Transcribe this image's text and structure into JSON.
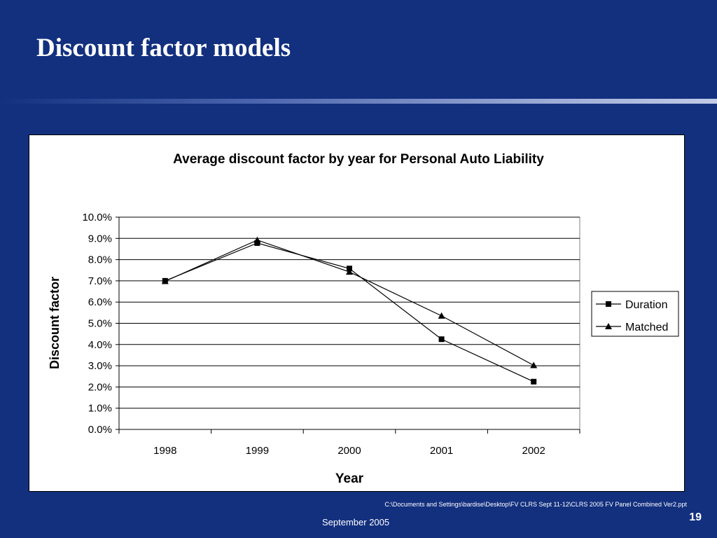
{
  "slide": {
    "title": "Discount factor models",
    "footer_path": "C:\\Documents and Settings\\bardise\\Desktop\\FV CLRS Sept 11-12\\CLRS 2005 FV Panel Combined Ver2.ppt",
    "footer_date": "September 2005",
    "page_number": "19"
  },
  "chart_data": {
    "type": "line",
    "title": "Average discount factor by year for Personal Auto Liability",
    "xlabel": "Year",
    "ylabel": "Discount factor",
    "categories": [
      "1998",
      "1999",
      "2000",
      "2001",
      "2002"
    ],
    "ylim": [
      0,
      0.1
    ],
    "yticks": [
      "0.0%",
      "1.0%",
      "2.0%",
      "3.0%",
      "4.0%",
      "5.0%",
      "6.0%",
      "7.0%",
      "8.0%",
      "9.0%",
      "10.0%"
    ],
    "grid": true,
    "legend_position": "right",
    "series": [
      {
        "name": "Duration",
        "marker": "square",
        "values": [
          0.07,
          0.0878,
          0.0758,
          0.0425,
          0.0225
        ]
      },
      {
        "name": "Matched",
        "marker": "triangle",
        "values": [
          0.0698,
          0.0892,
          0.0742,
          0.0535,
          0.0302
        ]
      }
    ]
  }
}
